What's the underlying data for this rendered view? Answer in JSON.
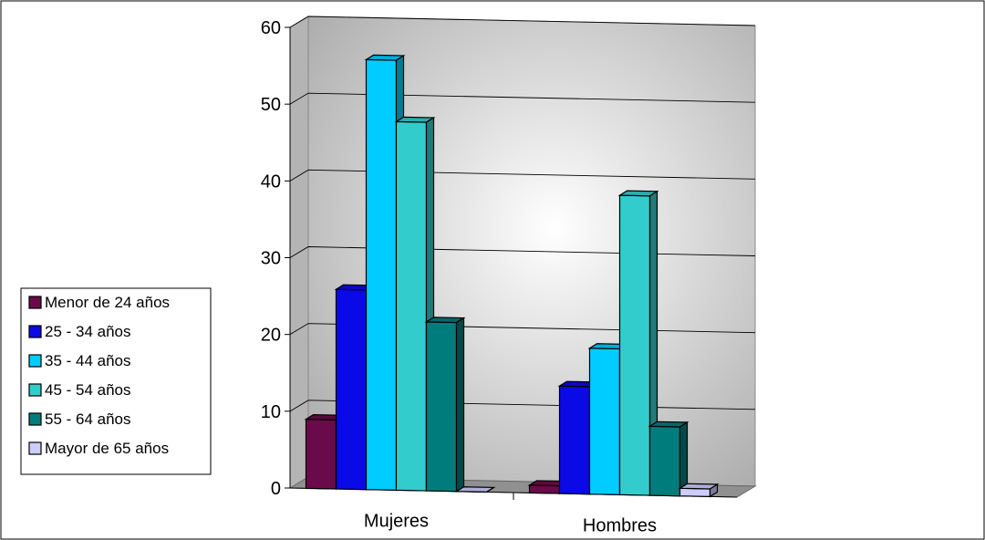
{
  "chart_data": {
    "type": "bar",
    "title": "",
    "xlabel": "",
    "ylabel": "",
    "ylim": [
      0,
      60
    ],
    "yticks": [
      0,
      10,
      20,
      30,
      40,
      50,
      60
    ],
    "grid": true,
    "legend_position": "left",
    "categories": [
      "Mujeres",
      "Hombres"
    ],
    "series": [
      {
        "name": "Menor de 24 años",
        "color": "#6b0a4a",
        "values": [
          9,
          1
        ]
      },
      {
        "name": "25 - 34 años",
        "color": "#0a0ae6",
        "values": [
          26,
          14
        ]
      },
      {
        "name": "35 - 44 años",
        "color": "#00ccff",
        "values": [
          56,
          19
        ]
      },
      {
        "name": "45 - 54 años",
        "color": "#33cccc",
        "values": [
          48,
          39
        ]
      },
      {
        "name": "55 - 64 años",
        "color": "#007c7c",
        "values": [
          22,
          9
        ]
      },
      {
        "name": "Mayor de 65 años",
        "color": "#ccccff",
        "values": [
          0,
          1
        ]
      }
    ]
  }
}
